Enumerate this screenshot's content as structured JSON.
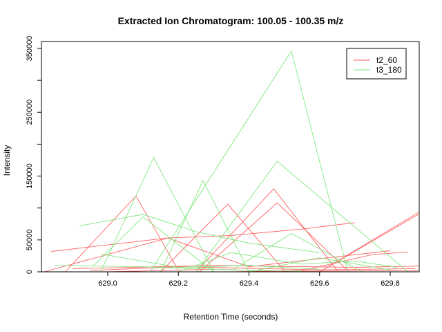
{
  "chart_data": {
    "type": "line",
    "title": "Extracted Ion Chromatogram: 100.05 - 100.35 m/z",
    "xlabel": "Retention Time (seconds)",
    "ylabel": "Intensity",
    "xlim": [
      628.81,
      628.88
    ],
    "ylim": [
      0,
      360000
    ],
    "xticks": [
      "629.0",
      "629.2",
      "629.4",
      "629.6",
      "629.8"
    ],
    "yticks": [
      "0",
      "50000",
      "150000",
      "250000",
      "350000"
    ],
    "grid": false,
    "legend_position": "top-right",
    "series": [
      {
        "name": "t2_60",
        "color": "#ff5e5e",
        "traces": [
          [
            [
              628.84,
              32000
            ],
            [
              629.17,
              53000
            ],
            [
              629.35,
              57000
            ],
            [
              629.55,
              67000
            ],
            [
              629.7,
              77000
            ]
          ],
          [
            [
              628.88,
              0
            ],
            [
              629.08,
              119000
            ],
            [
              629.2,
              2000
            ]
          ],
          [
            [
              629.15,
              0
            ],
            [
              629.34,
              106000
            ],
            [
              629.5,
              2000
            ]
          ],
          [
            [
              629.25,
              0
            ],
            [
              629.47,
              130000
            ],
            [
              629.65,
              2000
            ]
          ],
          [
            [
              629.26,
              0
            ],
            [
              629.48,
              108000
            ],
            [
              629.68,
              2000
            ]
          ],
          [
            [
              628.82,
              0
            ],
            [
              629.17,
              53000
            ],
            [
              629.4,
              8000
            ],
            [
              629.8,
              33000
            ]
          ],
          [
            [
              629.6,
              0
            ],
            [
              629.88,
              93000
            ]
          ],
          [
            [
              629.6,
              0
            ],
            [
              629.88,
              90000
            ]
          ],
          [
            [
              628.9,
              5000
            ],
            [
              629.3,
              10000
            ],
            [
              629.7,
              7000
            ],
            [
              629.88,
              9000
            ]
          ],
          [
            [
              628.95,
              2000
            ],
            [
              629.2,
              8000
            ],
            [
              629.6,
              3000
            ],
            [
              629.87,
              5000
            ]
          ],
          [
            [
              629.35,
              0
            ],
            [
              629.55,
              2000
            ],
            [
              629.75,
              27000
            ],
            [
              629.85,
              31000
            ]
          ],
          [
            [
              629.0,
              0
            ],
            [
              629.3,
              4000
            ],
            [
              629.5,
              1000
            ],
            [
              629.88,
              2000
            ]
          ]
        ]
      },
      {
        "name": "t3_180",
        "color": "#7fe77f",
        "traces": [
          [
            [
              629.12,
              0
            ],
            [
              629.52,
              346000
            ],
            [
              629.68,
              0
            ]
          ],
          [
            [
              628.98,
              0
            ],
            [
              629.13,
              179000
            ],
            [
              629.3,
              0
            ]
          ],
          [
            [
              629.15,
              0
            ],
            [
              629.27,
              143000
            ],
            [
              629.4,
              0
            ]
          ],
          [
            [
              629.25,
              0
            ],
            [
              629.48,
              173000
            ],
            [
              629.85,
              0
            ]
          ],
          [
            [
              628.92,
              72000
            ],
            [
              629.1,
              90000
            ],
            [
              629.25,
              63000
            ],
            [
              629.4,
              45000
            ],
            [
              629.6,
              30000
            ]
          ],
          [
            [
              628.96,
              10000
            ],
            [
              629.1,
              86000
            ],
            [
              629.3,
              0
            ]
          ],
          [
            [
              628.98,
              28000
            ],
            [
              629.2,
              7000
            ],
            [
              629.4,
              10000
            ],
            [
              629.6,
              4000
            ]
          ],
          [
            [
              628.85,
              10000
            ],
            [
              629.1,
              8000
            ],
            [
              629.35,
              3000
            ],
            [
              629.55,
              1000
            ]
          ],
          [
            [
              629.35,
              2000
            ],
            [
              629.52,
              60000
            ],
            [
              629.72,
              0
            ]
          ],
          [
            [
              629.2,
              0
            ],
            [
              629.35,
              30000
            ],
            [
              629.55,
              12000
            ],
            [
              629.7,
              17000
            ],
            [
              629.82,
              7000
            ]
          ],
          [
            [
              629.4,
              0
            ],
            [
              629.6,
              22000
            ],
            [
              629.8,
              3000
            ]
          ]
        ]
      }
    ]
  }
}
